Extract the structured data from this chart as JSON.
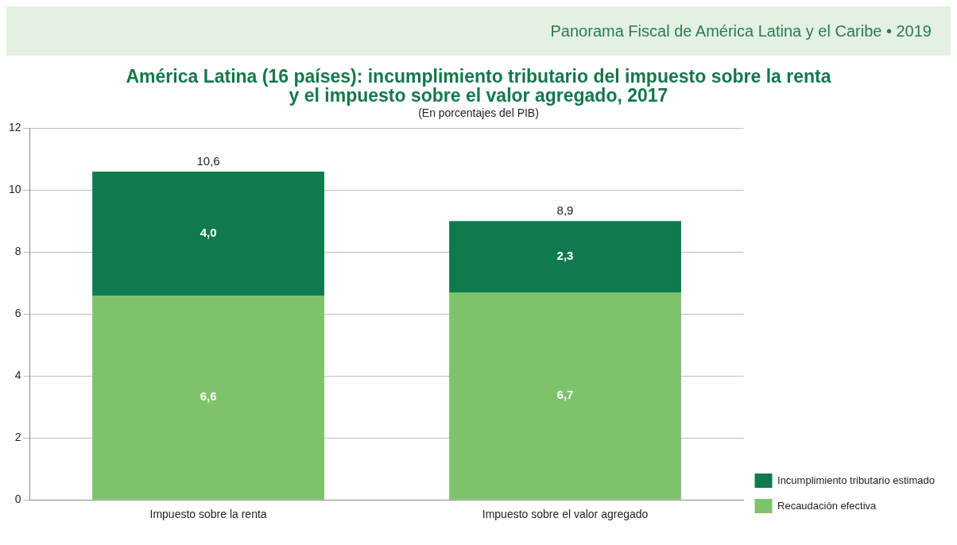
{
  "chart_data": {
    "type": "bar",
    "title": "América Latina (16 países): incumplimiento tributario del impuesto sobre la renta y el impuesto sobre el valor agregado, 2017",
    "subtitle": "(En porcentajes del PIB)",
    "annotations": [
      "Panorama Fiscal de América Latina y el Caribe • 2019"
    ],
    "categories": [
      "Impuesto sobre la renta",
      "Impuesto sobre el valor agregado"
    ],
    "stacked": true,
    "series": [
      {
        "name": "Recaudación efectiva",
        "color": "#7dc36b",
        "values": [
          6.6,
          6.7
        ],
        "value_labels": [
          "6,6",
          "6,7"
        ]
      },
      {
        "name": "Incumplimiento tributario estimado",
        "color": "#0e7a4e",
        "values": [
          4.0,
          2.3
        ],
        "value_labels": [
          "4,0",
          "2,3"
        ]
      }
    ],
    "totals": [
      "10,6",
      "8,9"
    ],
    "ylim": [
      0,
      12
    ],
    "yticks": [
      0,
      2,
      4,
      6,
      8,
      10,
      12
    ],
    "grid": "y",
    "legend": "bottom right"
  }
}
